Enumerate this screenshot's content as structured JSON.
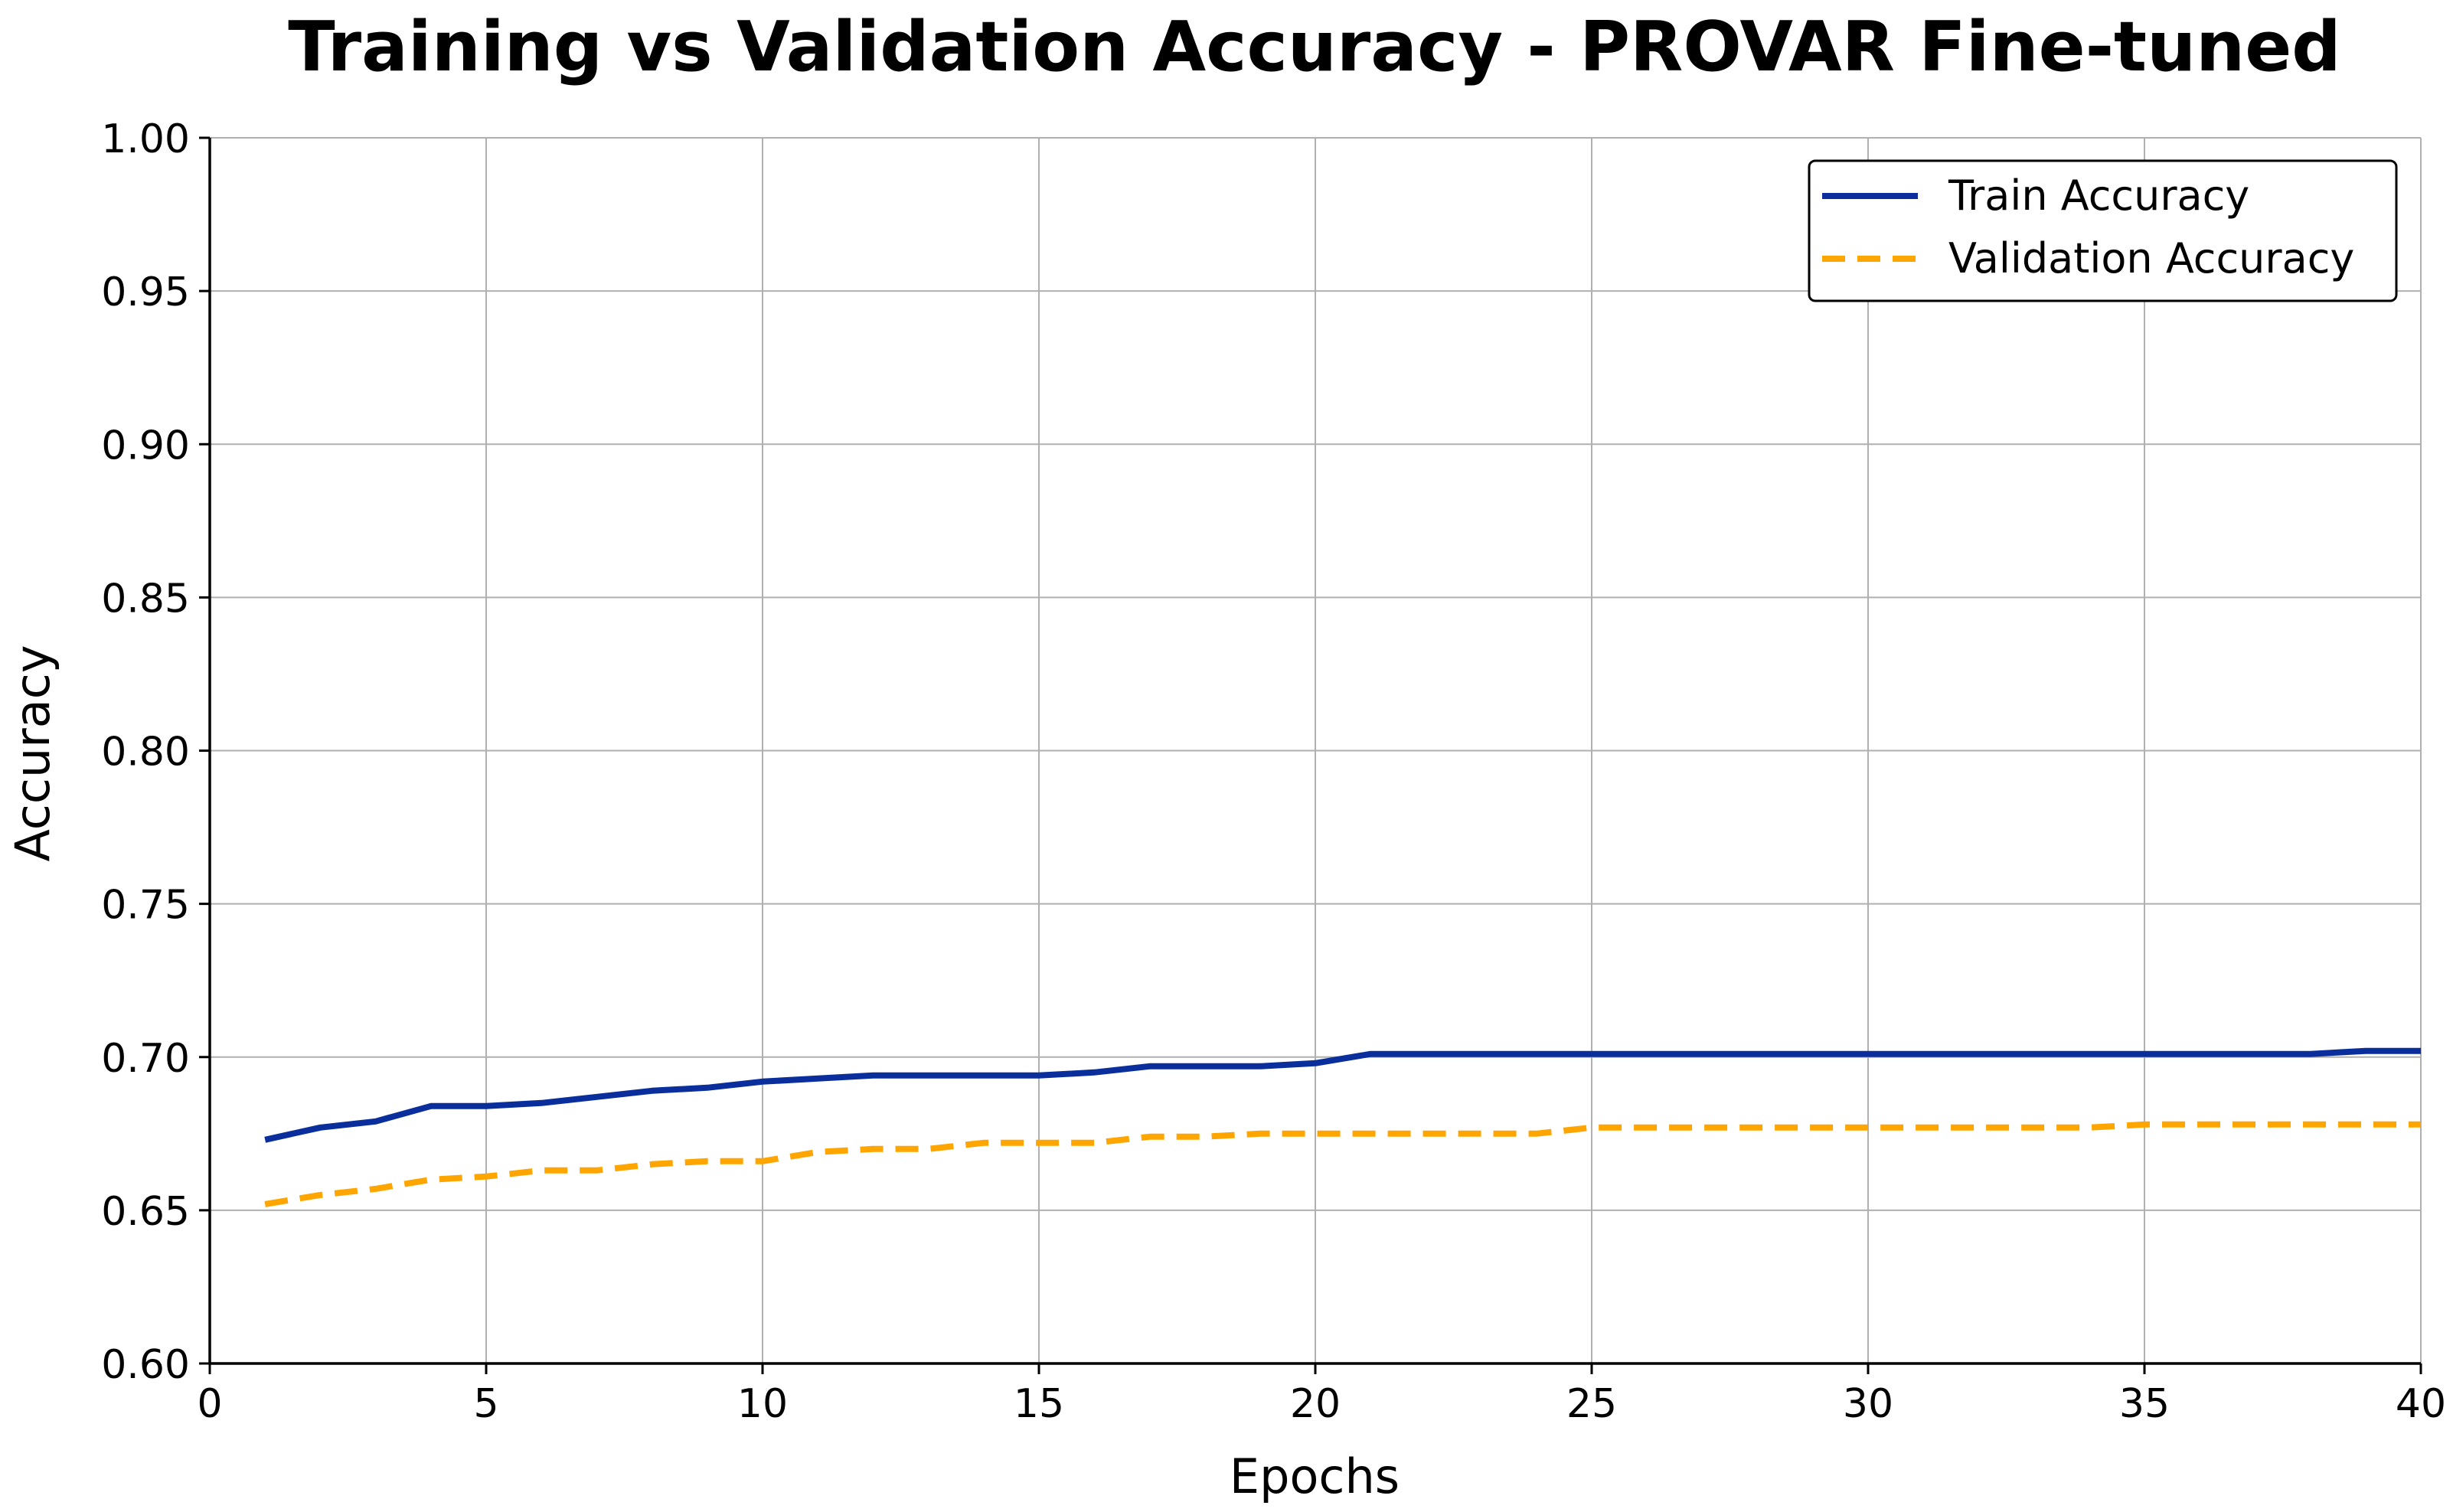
{
  "chart_data": {
    "type": "line",
    "title": "Training vs Validation Accuracy - PROVAR Fine-tuned",
    "xlabel": "Epochs",
    "ylabel": "Accuracy",
    "xlim": [
      0,
      40
    ],
    "ylim": [
      0.6,
      1.0
    ],
    "xticks": [
      "0",
      "5",
      "10",
      "15",
      "20",
      "25",
      "30",
      "35",
      "40"
    ],
    "yticks": [
      "0.60",
      "0.65",
      "0.70",
      "0.75",
      "0.80",
      "0.85",
      "0.90",
      "0.95",
      "1.00"
    ],
    "grid": true,
    "legend_position": "top-right",
    "x": [
      1,
      2,
      3,
      4,
      5,
      6,
      7,
      8,
      9,
      10,
      11,
      12,
      13,
      14,
      15,
      16,
      17,
      18,
      19,
      20,
      21,
      22,
      23,
      24,
      25,
      26,
      27,
      28,
      29,
      30,
      31,
      32,
      33,
      34,
      35,
      36,
      37,
      38,
      39,
      40
    ],
    "series": [
      {
        "name": "Train Accuracy",
        "color": "#0a2f9c",
        "style": "solid",
        "values": [
          0.673,
          0.677,
          0.679,
          0.684,
          0.684,
          0.685,
          0.687,
          0.689,
          0.69,
          0.692,
          0.693,
          0.694,
          0.694,
          0.694,
          0.694,
          0.695,
          0.697,
          0.697,
          0.697,
          0.698,
          0.701,
          0.701,
          0.701,
          0.701,
          0.701,
          0.701,
          0.701,
          0.701,
          0.701,
          0.701,
          0.701,
          0.701,
          0.701,
          0.701,
          0.701,
          0.701,
          0.701,
          0.701,
          0.702,
          0.702
        ]
      },
      {
        "name": "Validation Accuracy",
        "color": "#ffa500",
        "style": "dashed",
        "values": [
          0.652,
          0.655,
          0.657,
          0.66,
          0.661,
          0.663,
          0.663,
          0.665,
          0.666,
          0.666,
          0.669,
          0.67,
          0.67,
          0.672,
          0.672,
          0.672,
          0.674,
          0.674,
          0.675,
          0.675,
          0.675,
          0.675,
          0.675,
          0.675,
          0.677,
          0.677,
          0.677,
          0.677,
          0.677,
          0.677,
          0.677,
          0.677,
          0.677,
          0.677,
          0.678,
          0.678,
          0.678,
          0.678,
          0.678,
          0.678
        ]
      }
    ]
  }
}
